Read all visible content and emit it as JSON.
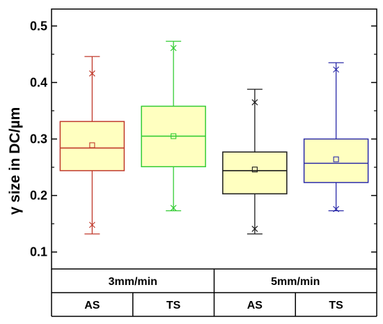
{
  "chart_data": {
    "type": "box",
    "ylabel": "γ size in DC/µm",
    "ylim": [
      0.07,
      0.53
    ],
    "yticks": [
      0.1,
      0.2,
      0.3,
      0.4,
      0.5
    ],
    "ytick_labels": [
      "0.1",
      "0.2",
      "0.3",
      "0.4",
      "0.5"
    ],
    "groups": [
      {
        "label": "3mm/min",
        "categories": [
          "AS",
          "TS"
        ]
      },
      {
        "label": "5mm/min",
        "categories": [
          "AS",
          "TS"
        ]
      }
    ],
    "box_fill": "#ffffc0",
    "series": [
      {
        "group": "3mm/min",
        "category": "AS",
        "color": "#c0392b",
        "whisker_low": 0.132,
        "q1": 0.244,
        "median": 0.284,
        "q3": 0.331,
        "whisker_high": 0.446,
        "mean": 0.289,
        "min_marker": 0.148,
        "max_marker": 0.416
      },
      {
        "group": "3mm/min",
        "category": "TS",
        "color": "#33cc33",
        "whisker_low": 0.173,
        "q1": 0.251,
        "median": 0.305,
        "q3": 0.358,
        "whisker_high": 0.473,
        "mean": 0.305,
        "min_marker": 0.178,
        "max_marker": 0.461
      },
      {
        "group": "5mm/min",
        "category": "AS",
        "color": "#1a1a1a",
        "whisker_low": 0.132,
        "q1": 0.203,
        "median": 0.244,
        "q3": 0.277,
        "whisker_high": 0.388,
        "mean": 0.246,
        "min_marker": 0.141,
        "max_marker": 0.365
      },
      {
        "group": "5mm/min",
        "category": "TS",
        "color": "#2a2aa8",
        "whisker_low": 0.173,
        "q1": 0.223,
        "median": 0.257,
        "q3": 0.3,
        "whisker_high": 0.435,
        "mean": 0.264,
        "min_marker": 0.176,
        "max_marker": 0.423
      }
    ]
  }
}
